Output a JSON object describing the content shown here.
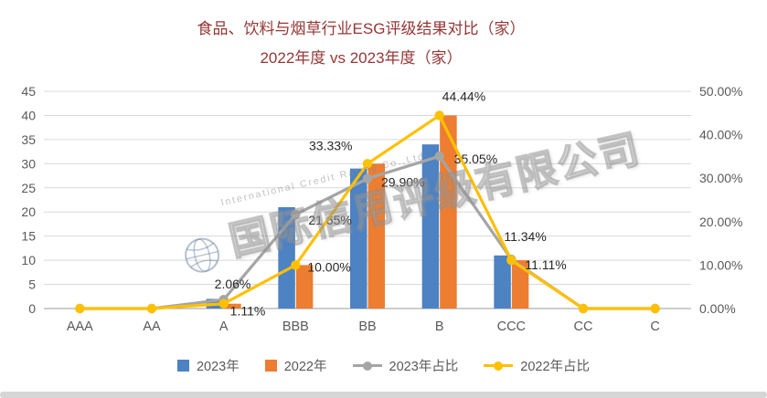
{
  "title": {
    "line1": "食品、饮料与烟草行业ESG评级结果对比（家）",
    "line2": "2022年度 vs 2023年度（家）"
  },
  "watermark": {
    "text": "国际信用评级有限公司",
    "subtext": "International Credit Rating Co.,Ltd"
  },
  "colors": {
    "bar2023": "#4D82C3",
    "bar2022": "#ED7D31",
    "line2023pct": "#A5A5A5",
    "line2022pct": "#FFC000",
    "title": "#953735",
    "axis": "#595959",
    "grid": "#D9D9D9",
    "axis_line": "#9B9B9B",
    "data_label": "#262626"
  },
  "chart_data": {
    "type": "bar+line",
    "title": "食品、饮料与烟草行业ESG评级结果对比（家） 2022年度 vs 2023年度（家）",
    "categories": [
      "AAA",
      "AA",
      "A",
      "BBB",
      "BB",
      "B",
      "CCC",
      "CC",
      "C"
    ],
    "bar_series": [
      {
        "name": "2023年",
        "color_key": "bar2023",
        "values": [
          0,
          0,
          2,
          21,
          29,
          34,
          11,
          0,
          0
        ]
      },
      {
        "name": "2022年",
        "color_key": "bar2022",
        "values": [
          0,
          0,
          1,
          9,
          30,
          40,
          10,
          0,
          0
        ]
      }
    ],
    "line_series": [
      {
        "name": "2023年占比",
        "color_key": "line2023pct",
        "values": [
          0,
          0,
          2.06,
          21.65,
          29.9,
          35.05,
          11.34,
          0,
          0
        ],
        "labels": [
          null,
          null,
          "2.06%",
          "21.65%",
          "29.90%",
          "35.05%",
          "11.34%",
          null,
          null
        ],
        "label_offsets": [
          null,
          null,
          [
            -10,
            -12
          ],
          [
            14,
            11
          ],
          [
            15,
            9
          ],
          [
            16,
            8
          ],
          [
            -8,
            -20
          ],
          null,
          null
        ]
      },
      {
        "name": "2022年占比",
        "color_key": "line2022pct",
        "values": [
          0,
          0,
          1.11,
          10.0,
          33.33,
          44.44,
          11.11,
          0,
          0
        ],
        "labels": [
          null,
          null,
          "1.11%",
          "10.00%",
          "33.33%",
          "44.44%",
          "11.11%",
          null,
          null
        ],
        "label_offsets": [
          null,
          null,
          [
            7,
            13
          ],
          [
            13,
            7
          ],
          [
            -64,
            -15
          ],
          [
            3,
            -16
          ],
          [
            15,
            10
          ],
          null,
          null
        ]
      }
    ],
    "left_axis": {
      "min": 0,
      "max": 45,
      "step": 5
    },
    "right_axis": {
      "min": 0,
      "max": 50,
      "step": 10,
      "labels": [
        "0.00%",
        "10.00%",
        "20.00%",
        "30.00%",
        "40.00%",
        "50.00%"
      ]
    },
    "grid": true,
    "legend_position": "bottom"
  }
}
